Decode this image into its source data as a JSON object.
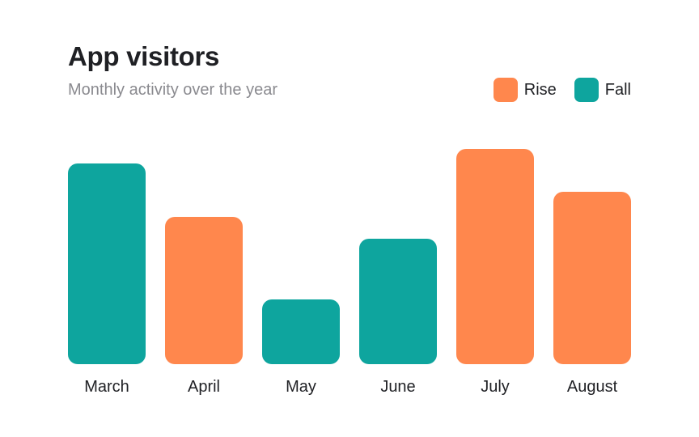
{
  "header": {
    "title": "App visitors",
    "subtitle": "Monthly activity over the year"
  },
  "legend": {
    "items": [
      {
        "label": "Rise",
        "color": "#FF874D"
      },
      {
        "label": "Fall",
        "color": "#0EA59E"
      }
    ]
  },
  "chart_data": {
    "type": "bar",
    "title": "App visitors",
    "subtitle": "Monthly activity over the year",
    "categories": [
      "March",
      "April",
      "May",
      "June",
      "July",
      "August"
    ],
    "values": [
      248,
      182,
      80,
      155,
      266,
      213
    ],
    "trend": [
      "Fall",
      "Rise",
      "Fall",
      "Fall",
      "Rise",
      "Rise"
    ],
    "ylim": [
      0,
      266
    ],
    "grid": false,
    "legend_position": "top-right",
    "colors": {
      "Rise": "#FF874D",
      "Fall": "#0EA59E"
    }
  }
}
